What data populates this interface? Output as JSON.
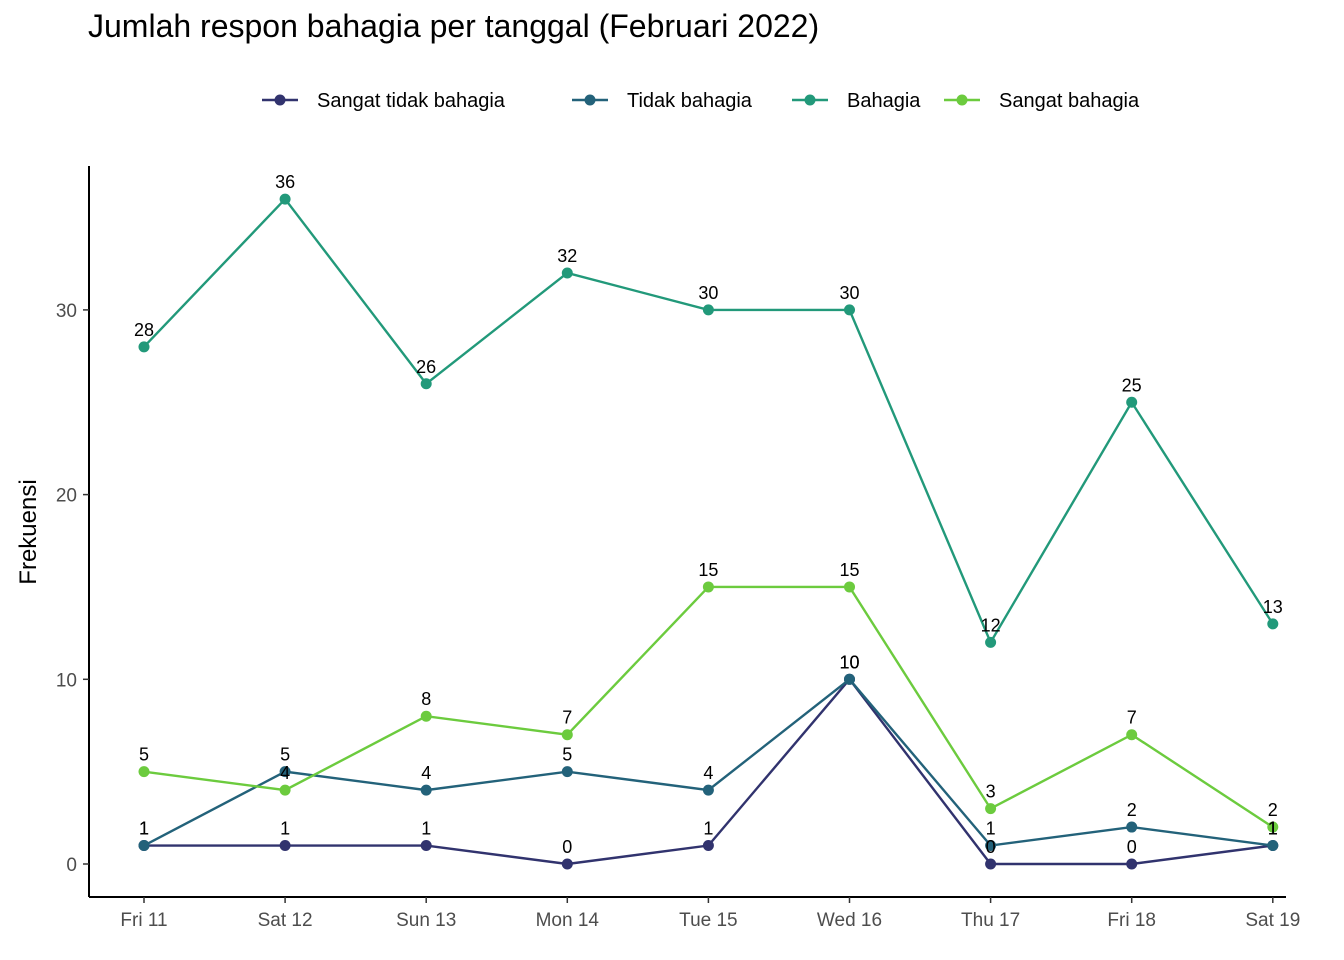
{
  "chart_data": {
    "type": "line",
    "title": "Jumlah respon bahagia per tanggal (Februari 2022)",
    "xlabel": "",
    "ylabel": "Frekuensi",
    "categories": [
      "Fri 11",
      "Sat 12",
      "Sun 13",
      "Mon 14",
      "Tue 15",
      "Wed 16",
      "Thu 17",
      "Fri 18",
      "Sat 19"
    ],
    "ylim": [
      -1.8,
      37.1
    ],
    "yticks": [
      0,
      10,
      20,
      30
    ],
    "grid": false,
    "legend_position": "top",
    "series": [
      {
        "name": "Sangat tidak bahagia",
        "color": "#31336E",
        "values": [
          1,
          1,
          1,
          0,
          1,
          10,
          0,
          0,
          1
        ]
      },
      {
        "name": "Tidak bahagia",
        "color": "#23627A",
        "values": [
          1,
          5,
          4,
          5,
          4,
          10,
          1,
          2,
          1
        ]
      },
      {
        "name": "Bahagia",
        "color": "#22997A",
        "values": [
          28,
          36,
          26,
          32,
          30,
          30,
          12,
          25,
          13
        ]
      },
      {
        "name": "Sangat bahagia",
        "color": "#6CCB3E",
        "values": [
          5,
          4,
          8,
          7,
          15,
          15,
          3,
          7,
          2
        ]
      }
    ]
  }
}
